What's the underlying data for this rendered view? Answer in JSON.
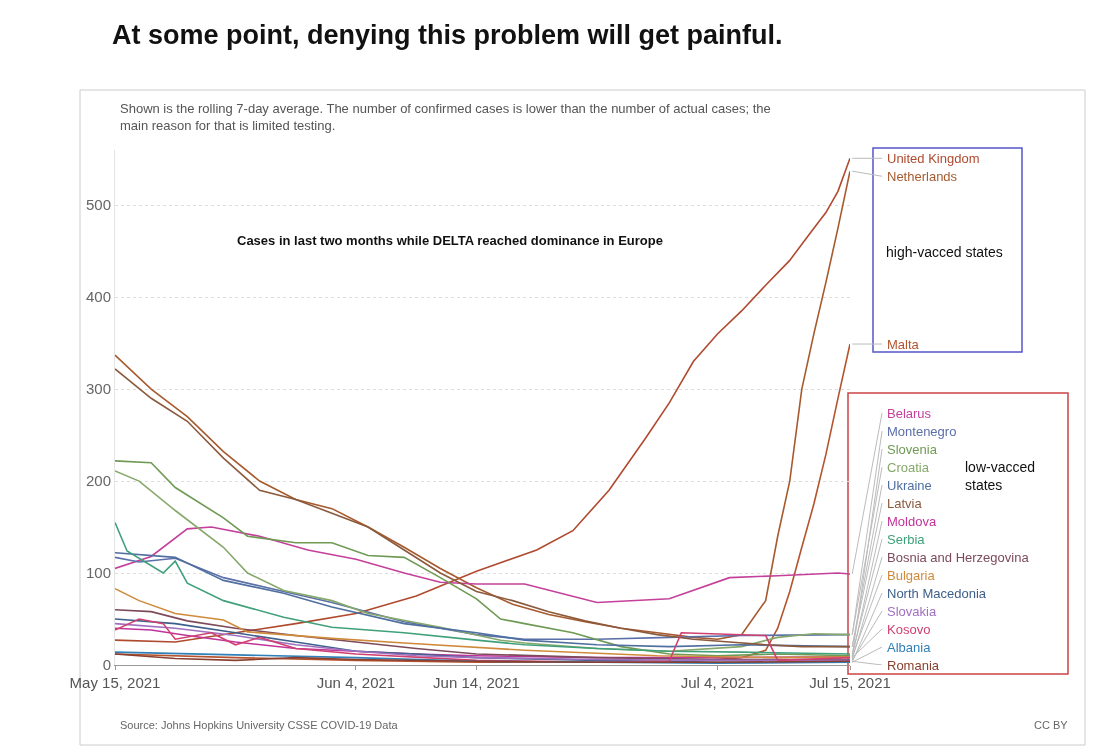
{
  "chart_data": {
    "type": "line",
    "title": "At some point, denying this problem will get painful.",
    "subtitle": "Shown is the rolling 7-day average. The number of confirmed cases is lower than the number of actual cases; the main reason for that is limited testing.",
    "annotations": [
      "Cases in last two months while DELTA reached dominance in Europe",
      "high-vacced states",
      "low-vacced states",
      "Source: Johns Hopkins University CSSE COVID-19 Data",
      "CC BY"
    ],
    "xlim": [
      "2021-05-15",
      "2021-07-15"
    ],
    "xticks": [
      {
        "value": "2021-05-15",
        "label": "May 15, 2021"
      },
      {
        "value": "2021-06-04",
        "label": "Jun 4, 2021"
      },
      {
        "value": "2021-06-14",
        "label": "Jun 14, 2021"
      },
      {
        "value": "2021-07-04",
        "label": "Jul 4, 2021"
      },
      {
        "value": "2021-07-15",
        "label": "Jul 15, 2021"
      }
    ],
    "ylim": [
      0,
      560
    ],
    "yticks": [
      0,
      100,
      200,
      300,
      400,
      500
    ],
    "grid": "y",
    "legend": false,
    "series": [
      {
        "name": "United Kingdom",
        "color": "#b04a2f",
        "x": [
          "2021-05-15",
          "2021-05-20",
          "2021-05-25",
          "2021-05-30",
          "2021-06-04",
          "2021-06-09",
          "2021-06-14",
          "2021-06-19",
          "2021-06-22",
          "2021-06-25",
          "2021-06-28",
          "2021-06-30",
          "2021-07-02",
          "2021-07-04",
          "2021-07-06",
          "2021-07-08",
          "2021-07-10",
          "2021-07-12",
          "2021-07-13",
          "2021-07-14",
          "2021-07-15"
        ],
        "values": [
          27,
          25,
          35,
          45,
          56,
          75,
          102,
          125,
          146,
          190,
          246,
          285,
          330,
          360,
          385,
          413,
          440,
          475,
          492,
          515,
          551
        ]
      },
      {
        "name": "Netherlands",
        "color": "#a65a2e",
        "x": [
          "2021-05-15",
          "2021-05-18",
          "2021-05-21",
          "2021-05-24",
          "2021-05-27",
          "2021-05-30",
          "2021-06-02",
          "2021-06-05",
          "2021-06-08",
          "2021-06-11",
          "2021-06-14",
          "2021-06-17",
          "2021-06-20",
          "2021-06-23",
          "2021-06-26",
          "2021-06-29",
          "2021-07-02",
          "2021-07-04",
          "2021-07-06",
          "2021-07-08",
          "2021-07-09",
          "2021-07-10",
          "2021-07-11",
          "2021-07-12",
          "2021-07-13",
          "2021-07-14",
          "2021-07-15"
        ],
        "values": [
          337,
          300,
          270,
          232,
          200,
          180,
          170,
          150,
          128,
          105,
          84,
          66,
          55,
          47,
          40,
          35,
          30,
          28,
          33,
          70,
          140,
          200,
          300,
          360,
          416,
          475,
          537
        ]
      },
      {
        "name": "Malta",
        "color": "#b5532d",
        "x": [
          "2021-05-15",
          "2021-05-25",
          "2021-06-04",
          "2021-06-14",
          "2021-06-24",
          "2021-07-02",
          "2021-07-06",
          "2021-07-08",
          "2021-07-09",
          "2021-07-10",
          "2021-07-11",
          "2021-07-12",
          "2021-07-13",
          "2021-07-14",
          "2021-07-15"
        ],
        "values": [
          12,
          8,
          5,
          3,
          3,
          4,
          8,
          16,
          40,
          80,
          128,
          175,
          229,
          290,
          349
        ]
      },
      {
        "name": "Belarus",
        "color": "#c4409a",
        "x": [
          "2021-05-15",
          "2021-05-18",
          "2021-05-21",
          "2021-05-23",
          "2021-05-27",
          "2021-05-31",
          "2021-06-04",
          "2021-06-08",
          "2021-06-11",
          "2021-06-14",
          "2021-06-18",
          "2021-06-24",
          "2021-06-30",
          "2021-07-05",
          "2021-07-09",
          "2021-07-14",
          "2021-07-15"
        ],
        "values": [
          105,
          118,
          148,
          150,
          140,
          125,
          115,
          100,
          90,
          88,
          88,
          68,
          72,
          95,
          97,
          100,
          99
        ]
      },
      {
        "name": "Montenegro",
        "color": "#5b6fa8",
        "x": [
          "2021-05-15",
          "2021-05-17",
          "2021-05-20",
          "2021-05-24",
          "2021-05-29",
          "2021-06-02",
          "2021-06-08",
          "2021-06-14",
          "2021-06-18",
          "2021-06-24",
          "2021-06-30",
          "2021-07-06",
          "2021-07-15"
        ],
        "values": [
          117,
          112,
          116,
          95,
          80,
          68,
          47,
          33,
          28,
          28,
          30,
          32,
          33
        ]
      },
      {
        "name": "Slovenia",
        "color": "#6f9a54",
        "x": [
          "2021-05-15",
          "2021-05-18",
          "2021-05-20",
          "2021-05-24",
          "2021-05-26",
          "2021-05-30",
          "2021-06-02",
          "2021-06-05",
          "2021-06-08",
          "2021-06-11",
          "2021-06-14",
          "2021-06-16",
          "2021-06-18",
          "2021-06-22",
          "2021-06-26",
          "2021-06-30",
          "2021-07-04",
          "2021-07-09",
          "2021-07-15"
        ],
        "values": [
          222,
          220,
          193,
          160,
          140,
          133,
          133,
          119,
          117,
          95,
          72,
          50,
          45,
          35,
          20,
          12,
          10,
          12,
          10
        ]
      },
      {
        "name": "Croatia",
        "color": "#86a86a",
        "x": [
          "2021-05-15",
          "2021-05-17",
          "2021-05-20",
          "2021-05-24",
          "2021-05-26",
          "2021-05-29",
          "2021-06-02",
          "2021-06-05",
          "2021-06-11",
          "2021-06-16",
          "2021-06-18",
          "2021-06-24",
          "2021-06-30",
          "2021-07-06",
          "2021-07-09",
          "2021-07-12",
          "2021-07-15"
        ],
        "values": [
          211,
          200,
          168,
          128,
          100,
          81,
          70,
          56,
          41,
          27,
          24,
          18,
          15,
          20,
          30,
          34,
          33
        ]
      },
      {
        "name": "Ukraine",
        "color": "#4f6fa0",
        "x": [
          "2021-05-15",
          "2021-05-20",
          "2021-05-24",
          "2021-05-29",
          "2021-06-02",
          "2021-06-08",
          "2021-06-14",
          "2021-06-18",
          "2021-06-24",
          "2021-06-30",
          "2021-07-06",
          "2021-07-15"
        ],
        "values": [
          122,
          117,
          92,
          78,
          63,
          45,
          35,
          27,
          22,
          20,
          22,
          20
        ]
      },
      {
        "name": "Latvia",
        "color": "#8b5a3c",
        "x": [
          "2021-05-15",
          "2021-05-18",
          "2021-05-21",
          "2021-05-24",
          "2021-05-27",
          "2021-05-30",
          "2021-06-02",
          "2021-06-05",
          "2021-06-08",
          "2021-06-11",
          "2021-06-14",
          "2021-06-17",
          "2021-06-20",
          "2021-06-23",
          "2021-06-26",
          "2021-06-29",
          "2021-07-02",
          "2021-07-05",
          "2021-07-08",
          "2021-07-11",
          "2021-07-15"
        ],
        "values": [
          322,
          290,
          265,
          225,
          190,
          180,
          165,
          150,
          125,
          100,
          80,
          70,
          58,
          48,
          40,
          33,
          28,
          25,
          22,
          20,
          20
        ]
      },
      {
        "name": "Moldova",
        "color": "#c2339a",
        "x": [
          "2021-05-15",
          "2021-05-18",
          "2021-05-21",
          "2021-05-25",
          "2021-05-30",
          "2021-06-04",
          "2021-06-09",
          "2021-06-14",
          "2021-06-24",
          "2021-07-04",
          "2021-07-15"
        ],
        "values": [
          40,
          38,
          32,
          25,
          18,
          15,
          12,
          10,
          8,
          8,
          9
        ]
      },
      {
        "name": "Serbia",
        "color": "#3fa07a",
        "x": [
          "2021-05-15",
          "2021-05-16",
          "2021-05-19",
          "2021-05-20",
          "2021-05-21",
          "2021-05-24",
          "2021-05-29",
          "2021-06-02",
          "2021-06-08",
          "2021-06-14",
          "2021-06-18",
          "2021-06-24",
          "2021-06-30",
          "2021-07-06",
          "2021-07-15"
        ],
        "values": [
          155,
          124,
          100,
          113,
          89,
          70,
          52,
          41,
          35,
          27,
          22,
          18,
          15,
          14,
          12
        ]
      },
      {
        "name": "Bosnia and Herzegovina",
        "color": "#7d4a5a",
        "x": [
          "2021-05-15",
          "2021-05-18",
          "2021-05-21",
          "2021-05-25",
          "2021-05-30",
          "2021-06-04",
          "2021-06-09",
          "2021-06-14",
          "2021-06-24",
          "2021-07-04",
          "2021-07-15"
        ],
        "values": [
          60,
          58,
          48,
          40,
          32,
          25,
          18,
          12,
          8,
          6,
          6
        ]
      },
      {
        "name": "Bulgaria",
        "color": "#d08a3c",
        "x": [
          "2021-05-15",
          "2021-05-17",
          "2021-05-20",
          "2021-05-24",
          "2021-05-26",
          "2021-06-02",
          "2021-06-08",
          "2021-06-18",
          "2021-06-29",
          "2021-07-09",
          "2021-07-15"
        ],
        "values": [
          83,
          70,
          56,
          49,
          36,
          29,
          24,
          16,
          10,
          8,
          9
        ]
      },
      {
        "name": "North Macedonia",
        "color": "#3d5f8a",
        "x": [
          "2021-05-15",
          "2021-05-20",
          "2021-05-25",
          "2021-05-30",
          "2021-06-04",
          "2021-06-09",
          "2021-06-14",
          "2021-06-24",
          "2021-07-04",
          "2021-07-15"
        ],
        "values": [
          50,
          45,
          35,
          25,
          15,
          12,
          8,
          5,
          3,
          3
        ]
      },
      {
        "name": "Slovakia",
        "color": "#a070c0",
        "x": [
          "2021-05-15",
          "2021-05-20",
          "2021-05-25",
          "2021-05-30",
          "2021-06-04",
          "2021-06-09",
          "2021-06-14",
          "2021-06-24",
          "2021-07-04",
          "2021-07-15"
        ],
        "values": [
          45,
          40,
          32,
          22,
          15,
          10,
          8,
          6,
          5,
          5
        ]
      },
      {
        "name": "Kosovo",
        "color": "#d04070",
        "x": [
          "2021-05-15",
          "2021-05-17",
          "2021-05-19",
          "2021-05-20",
          "2021-05-23",
          "2021-05-25",
          "2021-05-27",
          "2021-05-30",
          "2021-06-04",
          "2021-06-14",
          "2021-06-24",
          "2021-06-30",
          "2021-07-01",
          "2021-07-08",
          "2021-07-09",
          "2021-07-15"
        ],
        "values": [
          38,
          50,
          45,
          28,
          35,
          22,
          30,
          18,
          12,
          5,
          3,
          4,
          35,
          32,
          5,
          8
        ]
      },
      {
        "name": "Albania",
        "color": "#2f7fb8",
        "x": [
          "2021-05-15",
          "2021-05-25",
          "2021-06-04",
          "2021-06-14",
          "2021-06-24",
          "2021-07-04",
          "2021-07-15"
        ],
        "values": [
          14,
          11,
          8,
          4,
          3,
          2,
          3
        ]
      },
      {
        "name": "Romania",
        "color": "#8a4030",
        "x": [
          "2021-05-15",
          "2021-05-20",
          "2021-05-25",
          "2021-05-30",
          "2021-06-04",
          "2021-06-14",
          "2021-06-24",
          "2021-07-04",
          "2021-07-15"
        ],
        "values": [
          12,
          7,
          5,
          8,
          6,
          4,
          3,
          3,
          4
        ]
      }
    ]
  }
}
